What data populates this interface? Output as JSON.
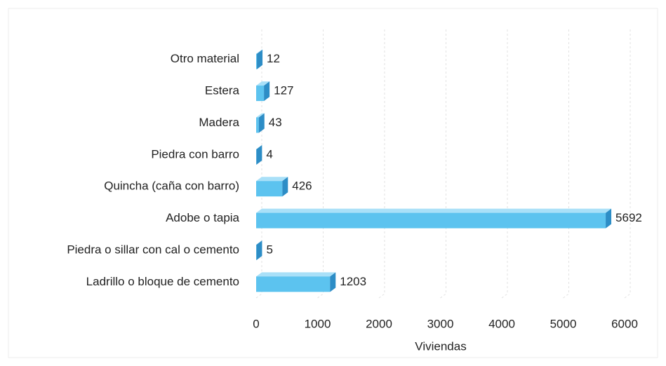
{
  "chart_data": {
    "type": "bar",
    "orientation": "horizontal",
    "categories": [
      "Otro material",
      "Estera",
      "Madera",
      "Piedra con barro",
      "Quincha (caña con barro)",
      "Adobe o tapia",
      "Piedra o sillar con cal o cemento",
      "Ladrillo o bloque de cemento"
    ],
    "values": [
      12,
      127,
      43,
      4,
      426,
      5692,
      5,
      1203
    ],
    "color": "#5cc3ef",
    "xlim": [
      0,
      6000
    ],
    "xticks": [
      0,
      1000,
      2000,
      3000,
      4000,
      5000,
      6000
    ],
    "x_label": "Viviendas",
    "grid": true
  }
}
